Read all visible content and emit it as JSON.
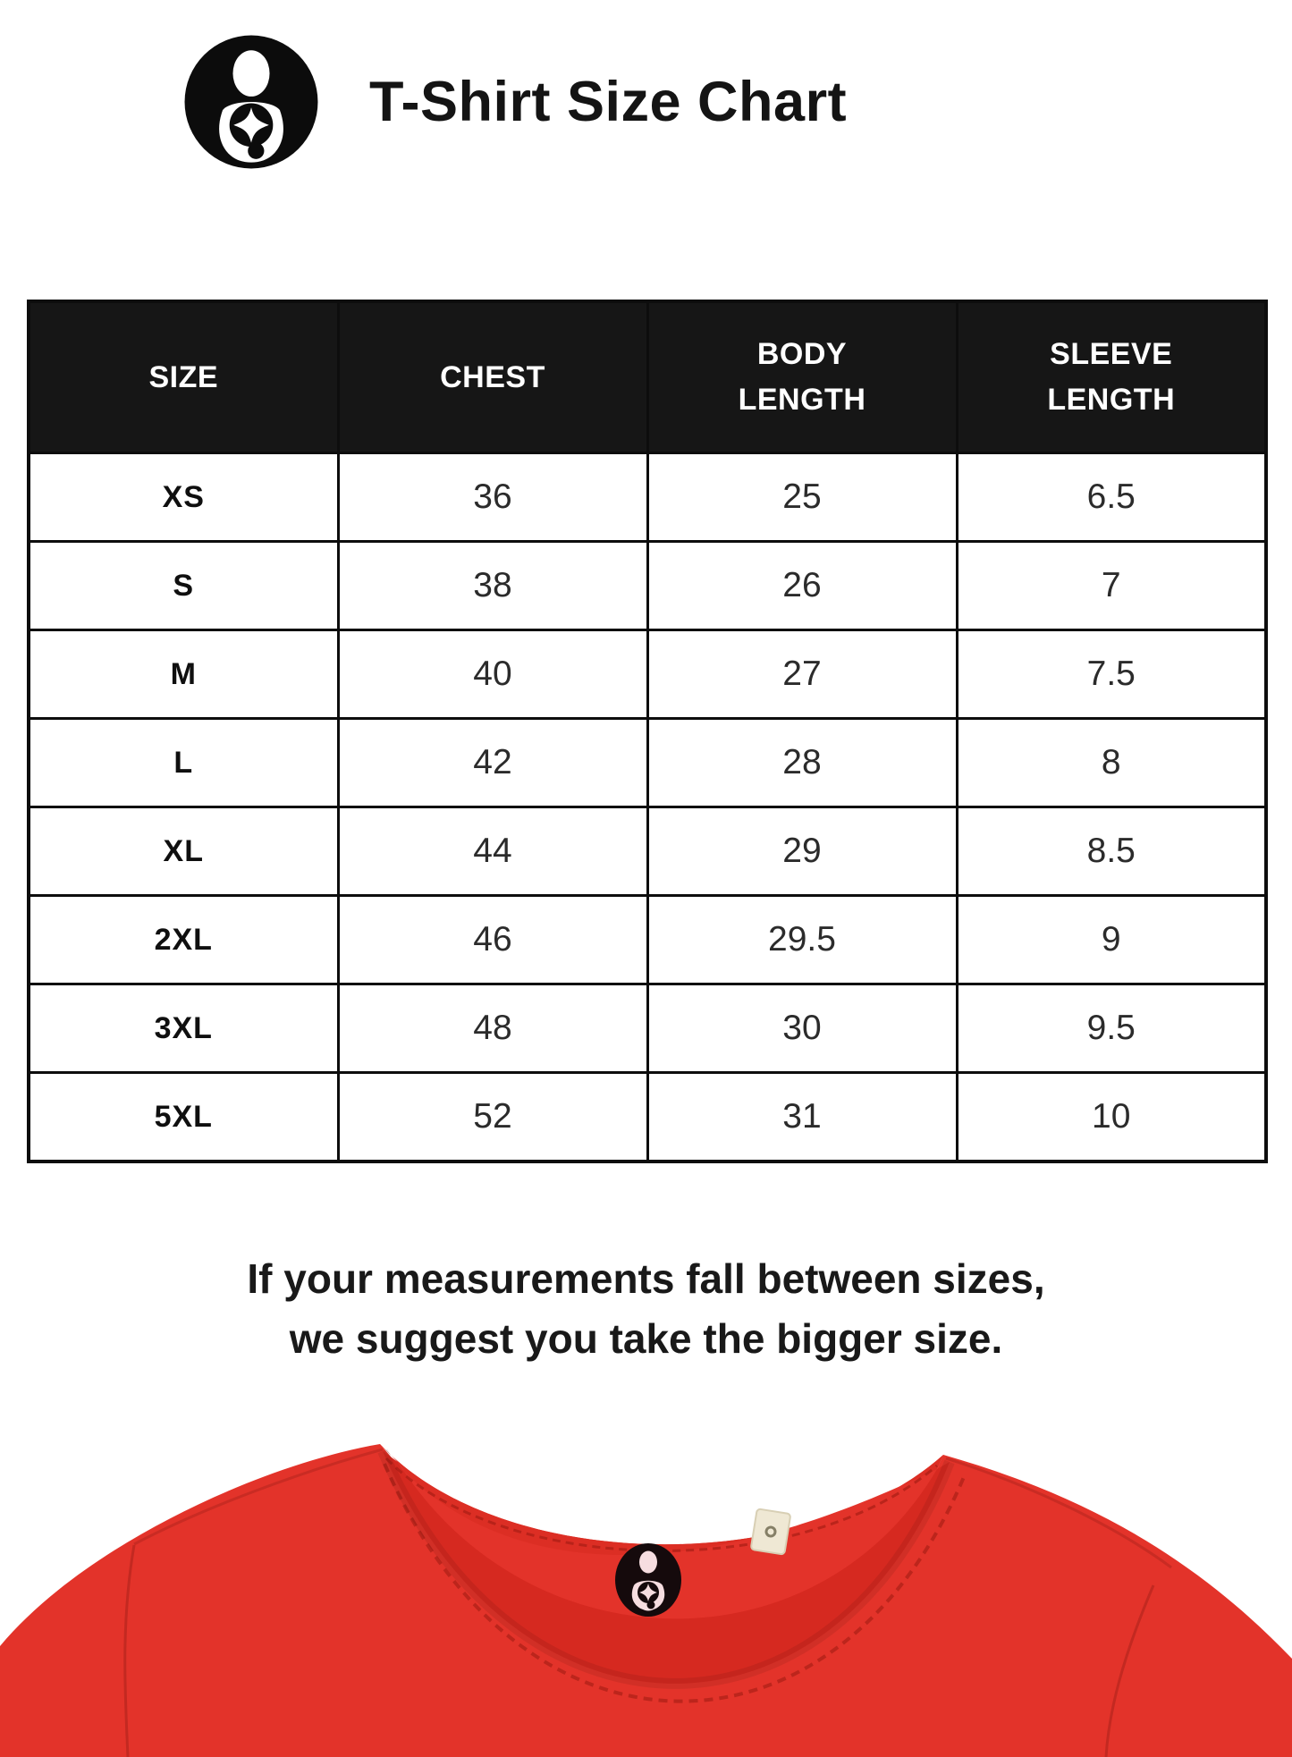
{
  "header": {
    "title": "T-Shirt Size Chart",
    "logo_icon": "brand-logo-icon"
  },
  "table": {
    "columns": [
      "SIZE",
      "CHEST",
      "BODY LENGTH",
      "SLEEVE LENGTH"
    ],
    "rows": [
      [
        "XS",
        "36",
        "25",
        "6.5"
      ],
      [
        "S",
        "38",
        "26",
        "7"
      ],
      [
        "M",
        "40",
        "27",
        "7.5"
      ],
      [
        "L",
        "42",
        "28",
        "8"
      ],
      [
        "XL",
        "44",
        "29",
        "8.5"
      ],
      [
        "2XL",
        "46",
        "29.5",
        "9"
      ],
      [
        "3XL",
        "48",
        "30",
        "9.5"
      ],
      [
        "5XL",
        "52",
        "31",
        "10"
      ]
    ]
  },
  "chart_data": {
    "type": "table",
    "title": "T-Shirt Size Chart",
    "columns": [
      "SIZE",
      "CHEST",
      "BODY LENGTH",
      "SLEEVE LENGTH"
    ],
    "rows": [
      {
        "size": "XS",
        "chest": 36,
        "body_length": 25,
        "sleeve_length": 6.5
      },
      {
        "size": "S",
        "chest": 38,
        "body_length": 26,
        "sleeve_length": 7
      },
      {
        "size": "M",
        "chest": 40,
        "body_length": 27,
        "sleeve_length": 7.5
      },
      {
        "size": "L",
        "chest": 42,
        "body_length": 28,
        "sleeve_length": 8
      },
      {
        "size": "XL",
        "chest": 44,
        "body_length": 29,
        "sleeve_length": 8.5
      },
      {
        "size": "2XL",
        "chest": 46,
        "body_length": 29.5,
        "sleeve_length": 9
      },
      {
        "size": "3XL",
        "chest": 48,
        "body_length": 30,
        "sleeve_length": 9.5
      },
      {
        "size": "5XL",
        "chest": 52,
        "body_length": 31,
        "sleeve_length": 10
      }
    ]
  },
  "note": {
    "line1": "If your measurements fall between sizes,",
    "line2": "we suggest you take the bigger size."
  },
  "product_photo": {
    "icon": "tshirt-collar-photo",
    "shirt_color": "#e3332a",
    "shirt_back_color": "#dc2e24",
    "collar_band_color": "#d62920",
    "seam_color": "#a81e16",
    "neck_label_bg": "#150a0c",
    "neck_label_logo_color": "#f6dde0",
    "care_tag_color": "#efe8d4"
  },
  "colors": {
    "page_bg": "#ffffff",
    "table_header_bg": "#161616",
    "table_header_text": "#ffffff",
    "table_border": "#0d0d0d",
    "title_text": "#141414",
    "note_text": "#191919",
    "logo_color": "#0c0c0c"
  }
}
